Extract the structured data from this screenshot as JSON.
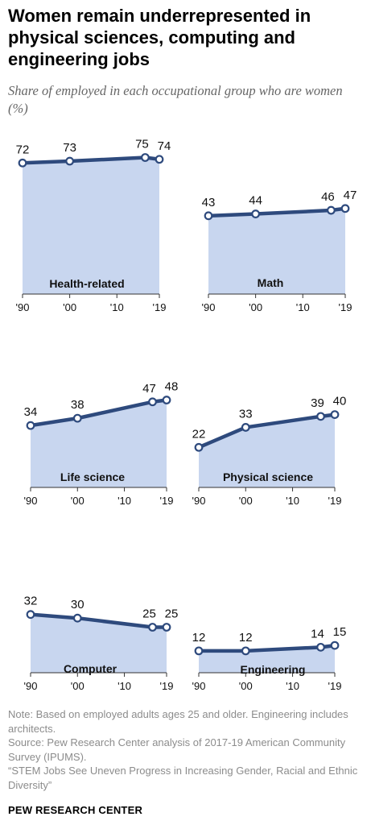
{
  "title": "Women remain underrepresented in physical sciences, computing and engineering jobs",
  "subtitle": "Share of employed in each occupational group who are women (%)",
  "colors": {
    "line": "#2e4a7d",
    "area": "#c8d6ef",
    "axis": "#333333"
  },
  "chart_data": [
    {
      "type": "area",
      "panel": "Health-related",
      "x": [
        1990,
        2000,
        2016,
        2019
      ],
      "values": [
        72,
        73,
        75,
        74
      ],
      "xticks": [
        "'90",
        "'00",
        "'10",
        "'19"
      ],
      "ylim": [
        0,
        100
      ]
    },
    {
      "type": "area",
      "panel": "Math",
      "x": [
        1990,
        2000,
        2016,
        2019
      ],
      "values": [
        43,
        44,
        46,
        47
      ],
      "xticks": [
        "'90",
        "'00",
        "'10",
        "'19"
      ],
      "ylim": [
        0,
        100
      ]
    },
    {
      "type": "area",
      "panel": "Life science",
      "x": [
        1990,
        2000,
        2016,
        2019
      ],
      "values": [
        34,
        38,
        47,
        48
      ],
      "xticks": [
        "'90",
        "'00",
        "'10",
        "'19"
      ],
      "ylim": [
        0,
        100
      ]
    },
    {
      "type": "area",
      "panel": "Physical science",
      "x": [
        1990,
        2000,
        2016,
        2019
      ],
      "values": [
        22,
        33,
        39,
        40
      ],
      "xticks": [
        "'90",
        "'00",
        "'10",
        "'19"
      ],
      "ylim": [
        0,
        100
      ]
    },
    {
      "type": "area",
      "panel": "Computer",
      "x": [
        1990,
        2000,
        2016,
        2019
      ],
      "values": [
        32,
        30,
        25,
        25
      ],
      "xticks": [
        "'90",
        "'00",
        "'10",
        "'19"
      ],
      "ylim": [
        0,
        100
      ]
    },
    {
      "type": "area",
      "panel": "Engineering",
      "x": [
        1990,
        2000,
        2016,
        2019
      ],
      "values": [
        12,
        12,
        14,
        15
      ],
      "xticks": [
        "'90",
        "'00",
        "'10",
        "'19"
      ],
      "ylim": [
        0,
        100
      ]
    }
  ],
  "notes": {
    "note": "Note: Based on employed adults ages 25 and older. Engineering includes architects.",
    "source": "Source: Pew Research Center analysis of 2017-19 American Community Survey (IPUMS).",
    "report": "“STEM Jobs See Uneven Progress in Increasing Gender, Racial and Ethnic Diversity”"
  },
  "brand": "PEW RESEARCH CENTER"
}
